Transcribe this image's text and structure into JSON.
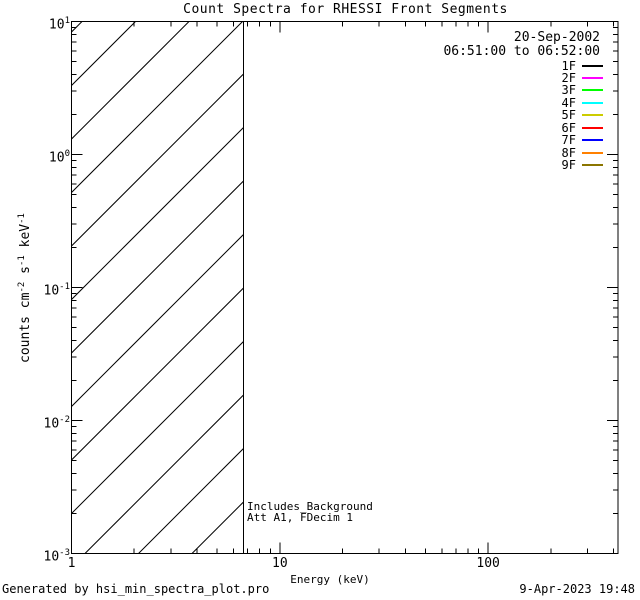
{
  "page": {
    "background": "#ffffff",
    "foreground": "#000000"
  },
  "footer": {
    "generated_by": "Generated by hsi_min_spectra_plot.pro",
    "timestamp": "9-Apr-2023 19:48"
  },
  "chart_data": {
    "type": "line",
    "title": "Count Spectra for RHESSI Front Segments",
    "xlabel": "Energy (keV)",
    "ylabel": "counts cm⁻² s⁻¹ keV⁻¹",
    "ylabel_parts": [
      {
        "text": "counts cm"
      },
      {
        "sup": "-2"
      },
      {
        "text": " s"
      },
      {
        "sup": "-1"
      },
      {
        "text": " keV"
      },
      {
        "sup": "-1"
      }
    ],
    "x_axis": {
      "scale": "log",
      "min": 1,
      "max": 420,
      "major_ticks": [
        {
          "value": 1,
          "label": "1"
        },
        {
          "value": 10,
          "label": "10"
        },
        {
          "value": 100,
          "label": "100"
        }
      ],
      "minor_ticks": [
        2,
        3,
        4,
        5,
        6,
        7,
        8,
        9,
        20,
        30,
        40,
        50,
        60,
        70,
        80,
        90,
        200,
        300,
        400
      ]
    },
    "y_axis": {
      "scale": "log",
      "min": 0.001,
      "max": 10,
      "major_ticks": [
        {
          "value": 10,
          "mantissa": "10",
          "exponent": "1"
        },
        {
          "value": 1,
          "mantissa": "10",
          "exponent": "0"
        },
        {
          "value": 0.1,
          "mantissa": "10",
          "exponent": "-1"
        },
        {
          "value": 0.01,
          "mantissa": "10",
          "exponent": "-2"
        },
        {
          "value": 0.001,
          "mantissa": "10",
          "exponent": "-3"
        }
      ],
      "minor_ticks": [
        0.002,
        0.003,
        0.004,
        0.005,
        0.006,
        0.007,
        0.008,
        0.009,
        0.02,
        0.03,
        0.04,
        0.05,
        0.06,
        0.07,
        0.08,
        0.09,
        0.2,
        0.3,
        0.4,
        0.5,
        0.6,
        0.7,
        0.8,
        0.9,
        2,
        3,
        4,
        5,
        6,
        7,
        8,
        9
      ]
    },
    "hatch_region": {
      "x_min": 1,
      "x_max": 6.7,
      "style": "diagonal-45deg-lines",
      "line_color": "#000000"
    },
    "series": [],
    "legend": {
      "position": "top-right",
      "date": "20-Sep-2002",
      "time_range": "06:51:00 to 06:52:00",
      "entries": [
        {
          "label": "1F",
          "color": "#000000"
        },
        {
          "label": "2F",
          "color": "#FF00FF"
        },
        {
          "label": "3F",
          "color": "#00FF00"
        },
        {
          "label": "4F",
          "color": "#00FFFF"
        },
        {
          "label": "5F",
          "color": "#CCCC00"
        },
        {
          "label": "6F",
          "color": "#FF0000"
        },
        {
          "label": "7F",
          "color": "#0000FF"
        },
        {
          "label": "8F",
          "color": "#FF8000"
        },
        {
          "label": "9F",
          "color": "#8B7500"
        }
      ]
    },
    "annotations": [
      {
        "text": "Includes_Background"
      },
      {
        "text": "Att A1, FDecim 1"
      }
    ]
  }
}
